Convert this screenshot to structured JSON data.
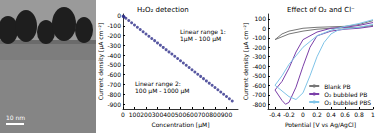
{
  "micrograph": {
    "scale_bar": "10 nm"
  },
  "chart_data": [
    {
      "type": "scatter",
      "title": "H₂O₂ detection",
      "x_label": "Concentration [µM]",
      "y_label": "Current density [µA cm⁻²]",
      "annotations": [
        [
          "Linear range 1:",
          "1µM - 100 µM"
        ],
        [
          "Linear range 2:",
          "100 µM - 1000 µM"
        ]
      ],
      "x": [
        1,
        5,
        10,
        25,
        50,
        75,
        100,
        125,
        150,
        175,
        200,
        225,
        250,
        275,
        300,
        325,
        350,
        375,
        400,
        425,
        450,
        475,
        500,
        525,
        550,
        575,
        600,
        625,
        650,
        675,
        700,
        725,
        750,
        775,
        800,
        825,
        850,
        875,
        900,
        925,
        950
      ],
      "values": [
        -2,
        -6,
        -11,
        -24,
        -47,
        -70,
        -93,
        -116,
        -139,
        -161,
        -184,
        -207,
        -230,
        -252,
        -275,
        -298,
        -321,
        -344,
        -367,
        -389,
        -412,
        -435,
        -458,
        -480,
        -503,
        -526,
        -549,
        -572,
        -595,
        -617,
        -640,
        -663,
        -686,
        -708,
        -731,
        -754,
        -777,
        -799,
        -822,
        -845,
        -868
      ],
      "color": "#2e2e8a",
      "marker": "circle",
      "xlim": [
        0,
        1000
      ],
      "xticks": [
        0,
        100,
        200,
        300,
        400,
        500,
        600,
        700,
        800,
        900
      ],
      "ylim": [
        -950,
        20
      ],
      "yticks": [
        0,
        -100,
        -200,
        -300,
        -400,
        -500,
        -600,
        -700,
        -800,
        -900
      ],
      "grid": false
    },
    {
      "type": "line",
      "title": "Effect of O₂ and Cl⁻",
      "x_label": "Potential [V vs Ag/AgCl]",
      "y_label": "Current density [µA cm⁻²]",
      "legend": "lower right",
      "series": [
        {
          "name": "Blank PB",
          "color": "#777777",
          "x": [
            1.0,
            0.8,
            0.6,
            0.4,
            0.2,
            0.0,
            -0.2,
            -0.4,
            -0.3,
            -0.2,
            0.0,
            0.2,
            0.4,
            0.6,
            0.8,
            1.0
          ],
          "values": [
            30,
            10,
            5,
            0,
            -10,
            -30,
            -60,
            -120,
            -60,
            -30,
            0,
            10,
            15,
            20,
            40,
            80
          ]
        },
        {
          "name": "O₂ bubbled PB",
          "color": "#7b3fa8",
          "x": [
            1.0,
            0.8,
            0.6,
            0.4,
            0.2,
            0.1,
            0.0,
            -0.1,
            -0.2,
            -0.25,
            -0.3,
            -0.4,
            -0.3,
            -0.2,
            -0.1,
            0.0,
            0.2,
            0.4,
            0.6,
            0.8,
            1.0
          ],
          "values": [
            20,
            0,
            -10,
            -30,
            -80,
            -200,
            -400,
            -620,
            -780,
            -800,
            -760,
            -650,
            -560,
            -420,
            -250,
            -120,
            -40,
            0,
            10,
            30,
            60
          ]
        },
        {
          "name": "O₂ bubbled PBS",
          "color": "#7fc4e8",
          "x": [
            1.0,
            0.8,
            0.6,
            0.5,
            0.4,
            0.3,
            0.2,
            0.1,
            0.0,
            -0.1,
            -0.2,
            -0.4,
            -0.3,
            -0.2,
            0.0,
            0.2,
            0.4,
            0.6,
            0.8,
            1.0
          ],
          "values": [
            40,
            10,
            -5,
            -20,
            -60,
            -150,
            -300,
            -500,
            -680,
            -750,
            -720,
            -600,
            -500,
            -380,
            -200,
            -80,
            -20,
            20,
            50,
            90
          ]
        }
      ],
      "xlim": [
        -0.5,
        1.0
      ],
      "xticks": [
        -0.4,
        -0.2,
        0,
        0.2,
        0.4,
        0.6,
        0.8,
        1
      ],
      "ylim": [
        -850,
        150
      ],
      "yticks": [
        100,
        0,
        -100,
        -200,
        -300,
        -400,
        -500,
        -600,
        -700,
        -800
      ],
      "grid": false
    }
  ]
}
